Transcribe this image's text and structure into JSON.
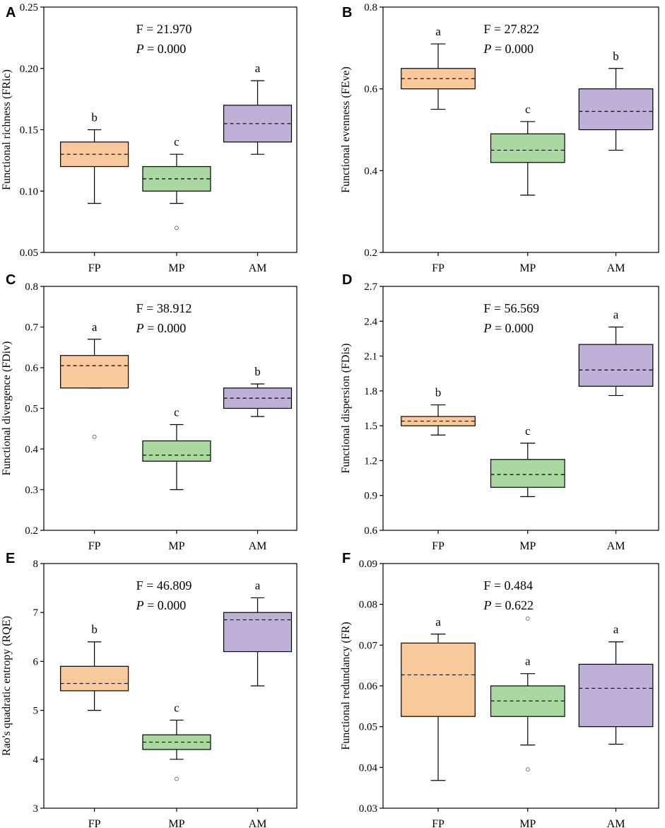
{
  "chart_data": [
    {
      "type": "box",
      "panel": "A",
      "ylabel": "Functional richness (FRic)",
      "ylim": [
        0.05,
        0.25
      ],
      "yticks": [
        "0.05",
        "0.10",
        "0.15",
        "0.20",
        "0.25"
      ],
      "categories": [
        "FP",
        "MP",
        "AM"
      ],
      "stat_F": "F = 21.970",
      "stat_P_symbol": "P",
      "stat_P_value": " = 0.000",
      "boxes": [
        {
          "name": "FP",
          "q1": 0.12,
          "q3": 0.14,
          "mean": 0.13,
          "whisker_low": 0.09,
          "whisker_high": 0.15,
          "outliers": [],
          "letter": "b",
          "color": "#f9c89b"
        },
        {
          "name": "MP",
          "q1": 0.1,
          "q3": 0.12,
          "mean": 0.11,
          "whisker_low": 0.09,
          "whisker_high": 0.13,
          "outliers": [
            0.07
          ],
          "letter": "c",
          "color": "#a9d8a0"
        },
        {
          "name": "AM",
          "q1": 0.14,
          "q3": 0.17,
          "mean": 0.155,
          "whisker_low": 0.13,
          "whisker_high": 0.19,
          "outliers": [],
          "letter": "a",
          "color": "#bfb0d8"
        }
      ]
    },
    {
      "type": "box",
      "panel": "B",
      "ylabel": "Functional evenness (FEve)",
      "ylim": [
        0.2,
        0.8
      ],
      "yticks": [
        "0.2",
        "0.4",
        "0.6",
        "0.8"
      ],
      "categories": [
        "FP",
        "MP",
        "AM"
      ],
      "stat_F": "F = 27.822",
      "stat_P_symbol": "P",
      "stat_P_value": " = 0.000",
      "boxes": [
        {
          "name": "FP",
          "q1": 0.6,
          "q3": 0.65,
          "mean": 0.625,
          "whisker_low": 0.55,
          "whisker_high": 0.71,
          "outliers": [],
          "letter": "a",
          "color": "#f9c89b"
        },
        {
          "name": "MP",
          "q1": 0.42,
          "q3": 0.49,
          "mean": 0.45,
          "whisker_low": 0.34,
          "whisker_high": 0.52,
          "outliers": [],
          "letter": "c",
          "color": "#a9d8a0"
        },
        {
          "name": "AM",
          "q1": 0.5,
          "q3": 0.6,
          "mean": 0.545,
          "whisker_low": 0.45,
          "whisker_high": 0.65,
          "outliers": [],
          "letter": "b",
          "color": "#bfb0d8"
        }
      ]
    },
    {
      "type": "box",
      "panel": "C",
      "ylabel": "Functional divergence (FDiv)",
      "ylim": [
        0.2,
        0.8
      ],
      "yticks": [
        "0.2",
        "0.3",
        "0.4",
        "0.5",
        "0.6",
        "0.7",
        "0.8"
      ],
      "categories": [
        "FP",
        "MP",
        "AM"
      ],
      "stat_F": "F = 38.912",
      "stat_P_symbol": "P",
      "stat_P_value": " = 0.000",
      "boxes": [
        {
          "name": "FP",
          "q1": 0.55,
          "q3": 0.63,
          "mean": 0.605,
          "whisker_low": 0.55,
          "whisker_high": 0.67,
          "outliers": [
            0.43
          ],
          "letter": "a",
          "color": "#f9c89b"
        },
        {
          "name": "MP",
          "q1": 0.37,
          "q3": 0.42,
          "mean": 0.385,
          "whisker_low": 0.3,
          "whisker_high": 0.46,
          "outliers": [],
          "letter": "c",
          "color": "#a9d8a0"
        },
        {
          "name": "AM",
          "q1": 0.5,
          "q3": 0.55,
          "mean": 0.525,
          "whisker_low": 0.48,
          "whisker_high": 0.56,
          "outliers": [],
          "letter": "b",
          "color": "#bfb0d8"
        }
      ]
    },
    {
      "type": "box",
      "panel": "D",
      "ylabel": "Functional dispersion (FDis)",
      "ylim": [
        0.6,
        2.7
      ],
      "yticks": [
        "0.6",
        "0.9",
        "1.2",
        "1.5",
        "1.8",
        "2.1",
        "2.4",
        "2.7"
      ],
      "categories": [
        "FP",
        "MP",
        "AM"
      ],
      "stat_F": "F = 56.569",
      "stat_P_symbol": "P",
      "stat_P_value": " = 0.000",
      "boxes": [
        {
          "name": "FP",
          "q1": 1.5,
          "q3": 1.58,
          "mean": 1.54,
          "whisker_low": 1.42,
          "whisker_high": 1.68,
          "outliers": [],
          "letter": "b",
          "color": "#f9c89b"
        },
        {
          "name": "MP",
          "q1": 0.97,
          "q3": 1.21,
          "mean": 1.08,
          "whisker_low": 0.89,
          "whisker_high": 1.35,
          "outliers": [],
          "letter": "c",
          "color": "#a9d8a0"
        },
        {
          "name": "AM",
          "q1": 1.84,
          "q3": 2.2,
          "mean": 1.98,
          "whisker_low": 1.76,
          "whisker_high": 2.35,
          "outliers": [],
          "letter": "a",
          "color": "#bfb0d8"
        }
      ]
    },
    {
      "type": "box",
      "panel": "E",
      "ylabel": "Rao's quadratic entropy (RQE)",
      "ylim": [
        3,
        8
      ],
      "yticks": [
        "3",
        "4",
        "5",
        "6",
        "7",
        "8"
      ],
      "categories": [
        "FP",
        "MP",
        "AM"
      ],
      "stat_F": "F = 46.809",
      "stat_P_symbol": "P",
      "stat_P_value": " = 0.000",
      "boxes": [
        {
          "name": "FP",
          "q1": 5.4,
          "q3": 5.9,
          "mean": 5.55,
          "whisker_low": 5.0,
          "whisker_high": 6.4,
          "outliers": [],
          "letter": "b",
          "color": "#f9c89b"
        },
        {
          "name": "MP",
          "q1": 4.2,
          "q3": 4.5,
          "mean": 4.35,
          "whisker_low": 4.0,
          "whisker_high": 4.8,
          "outliers": [
            3.6
          ],
          "letter": "c",
          "color": "#a9d8a0"
        },
        {
          "name": "AM",
          "q1": 6.2,
          "q3": 7.0,
          "mean": 6.85,
          "whisker_low": 5.5,
          "whisker_high": 7.3,
          "outliers": [],
          "letter": "a",
          "color": "#bfb0d8"
        }
      ]
    },
    {
      "type": "box",
      "panel": "F",
      "ylabel": "Functional redundancy (FR)",
      "ylim": [
        0.03,
        0.09
      ],
      "yticks": [
        "0.03",
        "0.04",
        "0.05",
        "0.06",
        "0.07",
        "0.08",
        "0.09"
      ],
      "categories": [
        "FP",
        "MP",
        "AM"
      ],
      "stat_F": "F = 0.484",
      "stat_P_symbol": "P",
      "stat_P_value": " = 0.622",
      "boxes": [
        {
          "name": "FP",
          "q1": 0.0525,
          "q3": 0.0705,
          "mean": 0.0627,
          "whisker_low": 0.0368,
          "whisker_high": 0.0727,
          "outliers": [],
          "letter": "a",
          "color": "#f9c89b"
        },
        {
          "name": "MP",
          "q1": 0.0525,
          "q3": 0.06,
          "mean": 0.0563,
          "whisker_low": 0.0455,
          "whisker_high": 0.063,
          "outliers": [
            0.0765,
            0.0395
          ],
          "letter": "a",
          "color": "#a9d8a0"
        },
        {
          "name": "AM",
          "q1": 0.05,
          "q3": 0.0653,
          "mean": 0.0594,
          "whisker_low": 0.0457,
          "whisker_high": 0.0708,
          "outliers": [],
          "letter": "a",
          "color": "#bfb0d8"
        }
      ]
    }
  ]
}
